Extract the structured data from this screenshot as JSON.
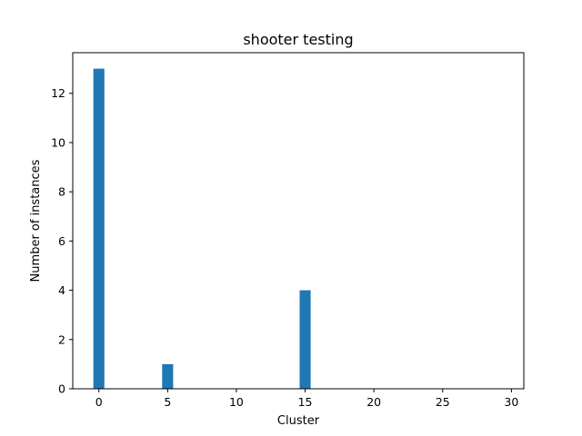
{
  "chart_data": {
    "type": "bar",
    "title": "shooter testing",
    "xlabel": "Cluster",
    "ylabel": "Number of instances",
    "x": [
      0,
      5,
      15
    ],
    "values": [
      13,
      1,
      4
    ],
    "bar_width": 0.8,
    "xlim": [
      -1.9,
      30.9
    ],
    "ylim": [
      0,
      13.65
    ],
    "xticks": [
      0,
      5,
      10,
      15,
      20,
      25,
      30
    ],
    "yticks": [
      0,
      2,
      4,
      6,
      8,
      10,
      12
    ],
    "grid": false,
    "bar_color": "#1f77b4"
  }
}
